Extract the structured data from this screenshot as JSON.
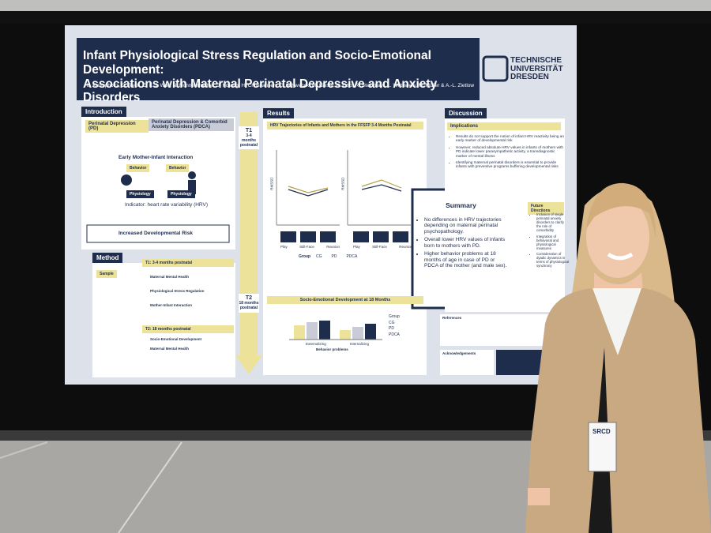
{
  "poster": {
    "title": [
      "Infant Physiological Stress Regulation and Socio-Emotional Development:",
      "Associations with Maternal Perinatal Depressive and Anxiety Disorders"
    ],
    "authors": "L. Krumpholtz, C. Reck, C. F. J. Woll, N. Nonnenmacher, J. Koenig, H. Christiansen, C. Schwenck, M. Kieser, K. Otto, R. Steinmayr, L. Wirthwein, M. Müller & A.-L. Zietlow",
    "university": [
      "TECHNISCHE",
      "UNIVERSITÄT",
      "DRESDEN"
    ],
    "introduction": {
      "heading": "Introduction",
      "pd": "Perinatal Depression (PD)",
      "pdca": "Perinatal Depression & Comorbid Anxiety Disorders (PDCA)",
      "interaction": "Early Mother-Infant Interaction",
      "physiology": "Physiology",
      "behavior": "Behavior",
      "indicator": "Indicator: heart rate variability (HRV)",
      "risk": "Increased Developmental Risk"
    },
    "method": {
      "heading": "Method",
      "sample": "Sample",
      "t1": "T1: 3-4 months postnatal",
      "items_t1": [
        "Maternal Mental Health",
        "Physiological Stress Regulation",
        "Mother-Infant Interaction"
      ],
      "t2": "T2: 18 months postnatal",
      "items_t2": [
        "Socio-Emotional Development",
        "Maternal Mental Health"
      ]
    },
    "timeline": {
      "t1": "T1",
      "t1_sub": "3-4 months postnatal",
      "t2": "T2",
      "t2_sub": "18 months postnatal"
    },
    "results": {
      "heading": "Results",
      "hrv_title": "HRV Trajectories of Infants and Mothers in the FFSFP 3-4 Months Postnatal",
      "axis": "RMSSD",
      "phases": [
        "Play",
        "Still-Face",
        "Reunion"
      ],
      "legend_title": "Group",
      "groups": [
        "CG",
        "PD",
        "PDCA"
      ],
      "sed_title": "Socio-Emotional Development at 18 Months",
      "bar_categories": [
        "Externalizing",
        "Internalizing"
      ],
      "bar_axis": "Behavior problems"
    },
    "summary": {
      "heading": "Summary",
      "bullets": [
        "No differences in HRV trajectories depending on maternal perinatal psychopathology.",
        "Overall lower HRV values of infants born to mothers with PD.",
        "Higher behavior problems at 18 months of age in case of PD or PDCA of the mother (and male sex)."
      ]
    },
    "discussion": {
      "heading": "Discussion",
      "implications": "Implications",
      "bullets": [
        "Results do not support the notion of infant HRV reactivity being an early marker of developmental risk",
        "However, reduced absolute HRV values in infants of mothers with PD indicate lower parasympathetic activity, a transdiagnostic marker of mental illness",
        "Identifying maternal perinatal disorders is essential to provide infants with preventive programs buffering developmental risks"
      ],
      "future": "Future Directions",
      "future_bullets": [
        "Inclusion of single perinatal anxiety disorders to clarify the role of comorbidity",
        "Integration of behavioral and physiological measures",
        "Consideration of dyadic dynamics in terms of physiological synchrony"
      ],
      "references": "References",
      "acknowledgements": "Acknowledgements"
    }
  },
  "badge": "SRCD"
}
